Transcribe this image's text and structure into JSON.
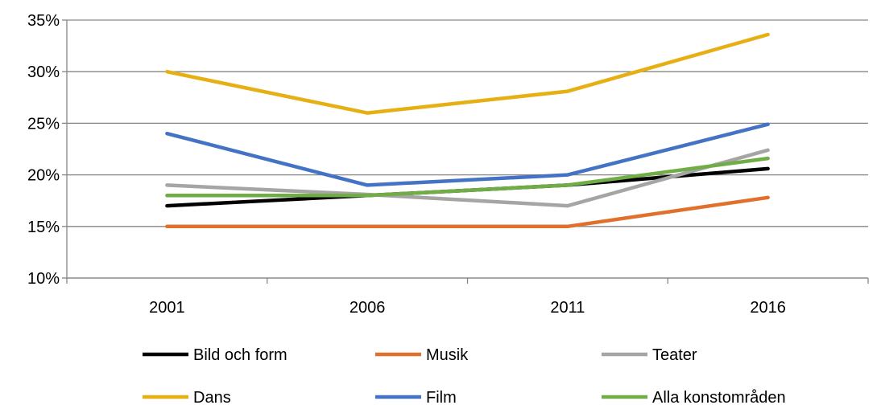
{
  "chart_data": {
    "type": "line",
    "title": "",
    "xlabel": "",
    "ylabel": "",
    "categories": [
      "2001",
      "2006",
      "2011",
      "2016"
    ],
    "ylim": [
      0.1,
      0.35
    ],
    "y_ticks": [
      "10%",
      "15%",
      "20%",
      "25%",
      "30%",
      "35%"
    ],
    "grid": true,
    "legend_position": "bottom",
    "series": [
      {
        "name": "Bild och form",
        "color": "#000000",
        "values": [
          0.17,
          0.18,
          0.19,
          0.206
        ]
      },
      {
        "name": "Musik",
        "color": "#E0702C",
        "values": [
          0.15,
          0.15,
          0.15,
          0.178
        ]
      },
      {
        "name": "Teater",
        "color": "#A5A5A5",
        "values": [
          0.19,
          0.181,
          0.17,
          0.224
        ]
      },
      {
        "name": "Dans",
        "color": "#E6AF14",
        "values": [
          0.3,
          0.26,
          0.281,
          0.336
        ]
      },
      {
        "name": "Film",
        "color": "#4472C4",
        "values": [
          0.24,
          0.19,
          0.2,
          0.249
        ]
      },
      {
        "name": "Alla konstområden",
        "color": "#70AD47",
        "values": [
          0.18,
          0.18,
          0.19,
          0.216
        ]
      }
    ]
  }
}
